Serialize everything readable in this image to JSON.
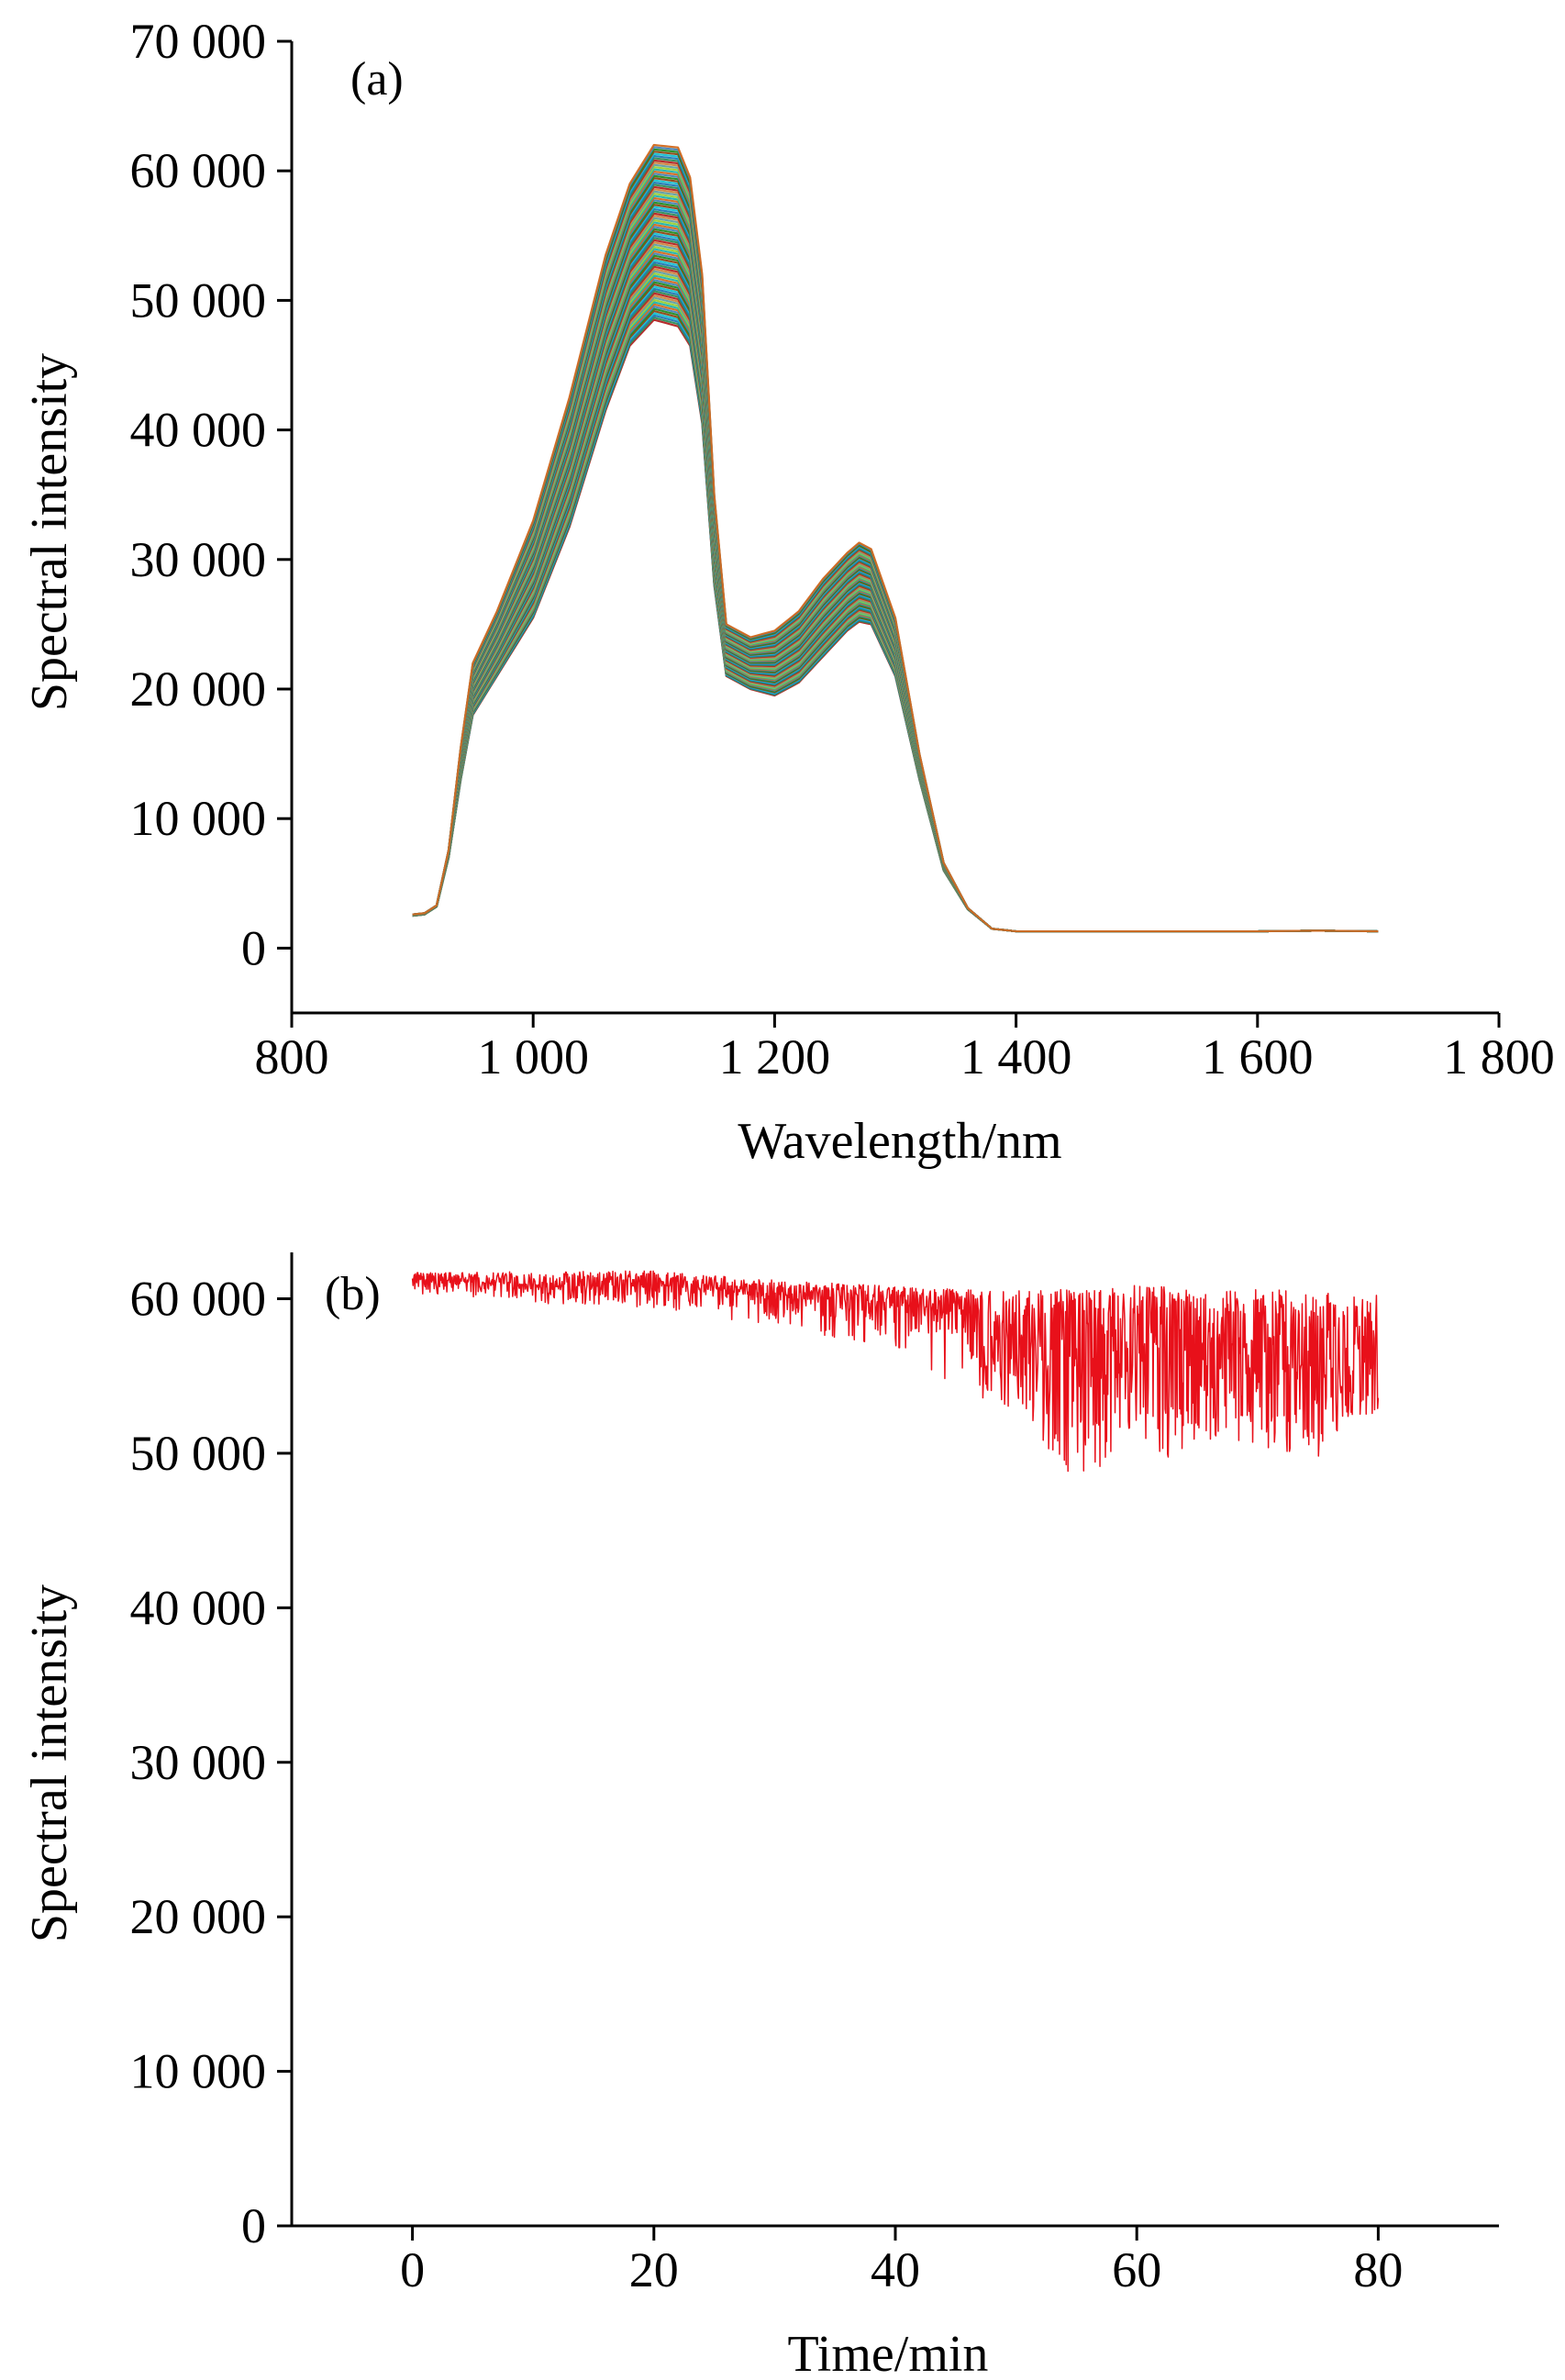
{
  "chart_data": [
    {
      "panel_label": "(a)",
      "type": "line",
      "xlabel": "Wavelength/nm",
      "ylabel": "Spectral intensity",
      "xlim": [
        800,
        1800
      ],
      "ylim": [
        -5000,
        70000
      ],
      "x_ticks": [
        800,
        1000,
        1200,
        1400,
        1600,
        1800
      ],
      "x_tick_labels": [
        "800",
        "1 000",
        "1 200",
        "1 400",
        "1 600",
        "1 800"
      ],
      "y_ticks": [
        0,
        10000,
        20000,
        30000,
        40000,
        50000,
        60000,
        70000
      ],
      "y_tick_labels": [
        "0",
        "10 000",
        "20 000",
        "30 000",
        "40 000",
        "50 000",
        "60 000",
        "70 000"
      ],
      "grid": false,
      "series_count": 80,
      "series_colors": [
        "#b22222",
        "#2e8b57",
        "#1f77b4",
        "#17becf",
        "#8b4513",
        "#228b22",
        "#4682b4",
        "#d2691e",
        "#20b2aa",
        "#9acd32",
        "#5f9ea0",
        "#cd853f"
      ],
      "x": [
        900,
        910,
        920,
        930,
        940,
        950,
        970,
        1000,
        1030,
        1060,
        1080,
        1100,
        1120,
        1130,
        1140,
        1150,
        1160,
        1180,
        1200,
        1220,
        1240,
        1260,
        1270,
        1280,
        1300,
        1320,
        1340,
        1360,
        1380,
        1400,
        1500,
        1600,
        1650,
        1700
      ],
      "series_min": [
        2500,
        2600,
        3200,
        7000,
        13000,
        18000,
        21000,
        25500,
        32500,
        41500,
        46500,
        48500,
        48000,
        46500,
        40500,
        28000,
        21000,
        20000,
        19500,
        20500,
        22500,
        24500,
        25200,
        25000,
        21000,
        13000,
        6000,
        3000,
        1500,
        1300,
        1300,
        1300,
        1350,
        1300
      ],
      "series_max": [
        2600,
        2700,
        3300,
        7600,
        15500,
        22000,
        26000,
        33000,
        42500,
        53500,
        59000,
        62000,
        61800,
        59500,
        52000,
        35000,
        25000,
        24000,
        24500,
        26000,
        28500,
        30500,
        31300,
        30800,
        25500,
        15000,
        6600,
        3100,
        1500,
        1300,
        1300,
        1300,
        1350,
        1300
      ]
    },
    {
      "panel_label": "(b)",
      "type": "line",
      "xlabel": "Time/min",
      "ylabel": "Spectral intensity",
      "xlim": [
        -10,
        90
      ],
      "ylim": [
        0,
        63000
      ],
      "x_ticks": [
        0,
        20,
        40,
        60,
        80
      ],
      "x_tick_labels": [
        "0",
        "20",
        "40",
        "60",
        "80"
      ],
      "y_ticks": [
        0,
        10000,
        20000,
        30000,
        40000,
        50000,
        60000
      ],
      "y_tick_labels": [
        "0",
        "10 000",
        "20 000",
        "30 000",
        "40 000",
        "50 000",
        "60 000"
      ],
      "grid": false,
      "series": [
        {
          "color": "#e8101a",
          "x_range": [
            0,
            80
          ],
          "trend": [
            [
              0,
              61300
            ],
            [
              10,
              60900
            ],
            [
              20,
              60900
            ],
            [
              30,
              60300
            ],
            [
              40,
              59800
            ],
            [
              45,
              58800
            ],
            [
              50,
              57800
            ],
            [
              55,
              56800
            ],
            [
              60,
              57200
            ],
            [
              65,
              56800
            ],
            [
              70,
              56600
            ],
            [
              75,
              56200
            ],
            [
              80,
              56300
            ]
          ],
          "upper": [
            [
              0,
              61700
            ],
            [
              20,
              61800
            ],
            [
              30,
              61200
            ],
            [
              40,
              60800
            ],
            [
              50,
              60500
            ],
            [
              60,
              60900
            ],
            [
              70,
              60600
            ],
            [
              80,
              60400
            ]
          ],
          "lower": [
            [
              0,
              60300
            ],
            [
              10,
              59700
            ],
            [
              20,
              59400
            ],
            [
              30,
              58200
            ],
            [
              40,
              56800
            ],
            [
              45,
              54300
            ],
            [
              50,
              52500
            ],
            [
              55,
              47900
            ],
            [
              58,
              49800
            ],
            [
              60,
              51500
            ],
            [
              62,
              49200
            ],
            [
              65,
              51000
            ],
            [
              70,
              50500
            ],
            [
              75,
              49700
            ],
            [
              80,
              52800
            ]
          ]
        }
      ]
    }
  ]
}
